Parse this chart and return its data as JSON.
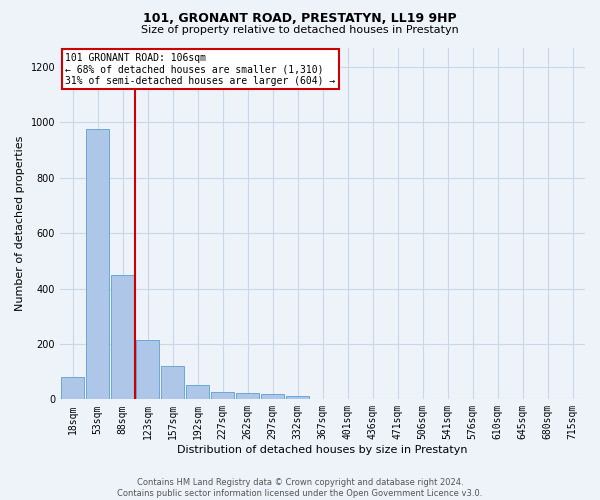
{
  "title": "101, GRONANT ROAD, PRESTATYN, LL19 9HP",
  "subtitle": "Size of property relative to detached houses in Prestatyn",
  "xlabel": "Distribution of detached houses by size in Prestatyn",
  "ylabel": "Number of detached properties",
  "footer_line1": "Contains HM Land Registry data © Crown copyright and database right 2024.",
  "footer_line2": "Contains public sector information licensed under the Open Government Licence v3.0.",
  "bin_labels": [
    "18sqm",
    "53sqm",
    "88sqm",
    "123sqm",
    "157sqm",
    "192sqm",
    "227sqm",
    "262sqm",
    "297sqm",
    "332sqm",
    "367sqm",
    "401sqm",
    "436sqm",
    "471sqm",
    "506sqm",
    "541sqm",
    "576sqm",
    "610sqm",
    "645sqm",
    "680sqm",
    "715sqm"
  ],
  "bar_values": [
    80,
    975,
    450,
    215,
    120,
    50,
    25,
    22,
    18,
    12,
    0,
    0,
    0,
    0,
    0,
    0,
    0,
    0,
    0,
    0,
    0
  ],
  "bar_color": "#aec6e8",
  "bar_edge_color": "#5a9fd4",
  "grid_color": "#c8d8e8",
  "background_color": "#eef3fa",
  "vline_color": "#cc0000",
  "annotation_text": "101 GRONANT ROAD: 106sqm\n← 68% of detached houses are smaller (1,310)\n31% of semi-detached houses are larger (604) →",
  "annotation_box_color": "#ffffff",
  "annotation_box_edge": "#cc0000",
  "ylim": [
    0,
    1270
  ],
  "yticks": [
    0,
    200,
    400,
    600,
    800,
    1000,
    1200
  ],
  "title_fontsize": 9,
  "subtitle_fontsize": 8,
  "ylabel_fontsize": 8,
  "xlabel_fontsize": 8,
  "tick_fontsize": 7,
  "footer_fontsize": 6
}
